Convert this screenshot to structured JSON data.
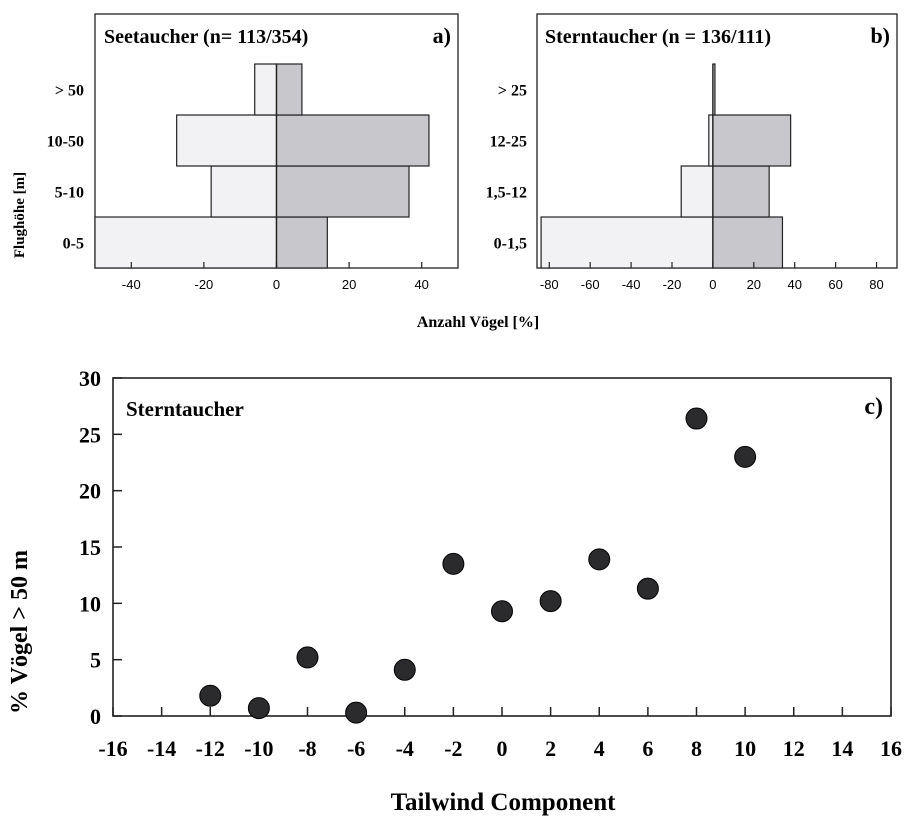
{
  "shared_xlabel": "Anzahl Vögel [%]",
  "shared_ylabel": "Flughöhe [m]",
  "chart_data": [
    {
      "type": "bar",
      "orientation": "horizontal-diverging",
      "title": "Seetaucher (n= 113/354)",
      "panel_label": "a)",
      "categories": [
        "0-5",
        "5-10",
        "10-50",
        "> 50"
      ],
      "series": [
        {
          "values": [
            -50,
            -18,
            -27.5,
            -6
          ]
        },
        {
          "values": [
            14,
            36.5,
            42,
            7
          ]
        }
      ],
      "xlim": [
        -50,
        50
      ],
      "xticks": [
        -40,
        -20,
        0,
        20,
        40
      ],
      "colors": [
        "#f2f2f4",
        "#c8c8cc"
      ]
    },
    {
      "type": "bar",
      "orientation": "horizontal-diverging",
      "title": "Sterntaucher (n = 136/111)",
      "panel_label": "b)",
      "categories": [
        "0-1,5",
        "1,5-12",
        "12-25",
        "> 25"
      ],
      "series": [
        {
          "values": [
            -84,
            -15.5,
            -2,
            0
          ]
        },
        {
          "values": [
            34,
            27.5,
            38,
            1
          ]
        }
      ],
      "xlim": [
        -86,
        90
      ],
      "xticks": [
        -80,
        -60,
        -40,
        -20,
        0,
        20,
        40,
        60,
        80
      ],
      "colors": [
        "#f2f2f4",
        "#c8c8cc"
      ]
    },
    {
      "type": "scatter",
      "title": "Sterntaucher",
      "panel_label": "c)",
      "xlabel": "Tailwind Component",
      "ylabel": "% Vögel > 50 m",
      "xlim": [
        -16,
        16
      ],
      "ylim": [
        0,
        30
      ],
      "xticks": [
        -16,
        -14,
        -12,
        -10,
        -8,
        -6,
        -4,
        -2,
        0,
        2,
        4,
        6,
        8,
        10,
        12,
        14,
        16
      ],
      "yticks": [
        0,
        5,
        10,
        15,
        20,
        25,
        30
      ],
      "points": [
        {
          "x": -12,
          "y": 1.8
        },
        {
          "x": -10,
          "y": 0.7
        },
        {
          "x": -8,
          "y": 5.2
        },
        {
          "x": -6,
          "y": 0.3
        },
        {
          "x": -4,
          "y": 4.1
        },
        {
          "x": -2,
          "y": 13.5
        },
        {
          "x": 0,
          "y": 9.3
        },
        {
          "x": 2,
          "y": 10.2
        },
        {
          "x": 4,
          "y": 13.9
        },
        {
          "x": 6,
          "y": 11.3
        },
        {
          "x": 8,
          "y": 26.4
        },
        {
          "x": 10,
          "y": 23.0
        }
      ],
      "marker_color": "#2b2b2e"
    }
  ]
}
